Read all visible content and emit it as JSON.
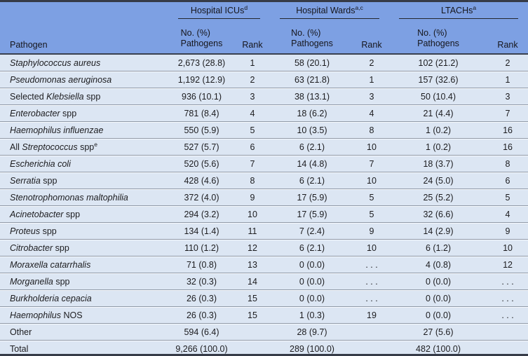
{
  "table": {
    "groups": [
      {
        "label": "Hospital ICUs",
        "sup": "d"
      },
      {
        "label": "Hospital Wards",
        "sup": "a,c"
      },
      {
        "label": "LTACHs",
        "sup": "a"
      }
    ],
    "columns": {
      "pathogen": "Pathogen",
      "no_line1": "No. (%)",
      "no_line2": "Pathogens",
      "rank": "Rank"
    },
    "rows": [
      {
        "pathogen": {
          "pre": "",
          "italic": "Staphylococcus aureus",
          "post": "",
          "sup": ""
        },
        "icu_no": "2,673 (28.8)",
        "icu_rank": "1",
        "ward_no": "58 (20.1)",
        "ward_rank": "2",
        "ltach_no": "102 (21.2)",
        "ltach_rank": "2"
      },
      {
        "pathogen": {
          "pre": "",
          "italic": "Pseudomonas aeruginosa",
          "post": "",
          "sup": ""
        },
        "icu_no": "1,192 (12.9)",
        "icu_rank": "2",
        "ward_no": "63 (21.8)",
        "ward_rank": "1",
        "ltach_no": "157 (32.6)",
        "ltach_rank": "1"
      },
      {
        "pathogen": {
          "pre": "Selected ",
          "italic": "Klebsiella",
          "post": " spp",
          "sup": ""
        },
        "icu_no": "936 (10.1)",
        "icu_rank": "3",
        "ward_no": "38 (13.1)",
        "ward_rank": "3",
        "ltach_no": "50 (10.4)",
        "ltach_rank": "3"
      },
      {
        "pathogen": {
          "pre": "",
          "italic": "Enterobacter",
          "post": " spp",
          "sup": ""
        },
        "icu_no": "781 (8.4)",
        "icu_rank": "4",
        "ward_no": "18 (6.2)",
        "ward_rank": "4",
        "ltach_no": "21 (4.4)",
        "ltach_rank": "7"
      },
      {
        "pathogen": {
          "pre": "",
          "italic": "Haemophilus influenzae",
          "post": "",
          "sup": ""
        },
        "icu_no": "550 (5.9)",
        "icu_rank": "5",
        "ward_no": "10 (3.5)",
        "ward_rank": "8",
        "ltach_no": "1 (0.2)",
        "ltach_rank": "16"
      },
      {
        "pathogen": {
          "pre": "All ",
          "italic": "Streptococcus",
          "post": " spp",
          "sup": "e"
        },
        "icu_no": "527 (5.7)",
        "icu_rank": "6",
        "ward_no": "6 (2.1)",
        "ward_rank": "10",
        "ltach_no": "1 (0.2)",
        "ltach_rank": "16"
      },
      {
        "pathogen": {
          "pre": "",
          "italic": "Escherichia coli",
          "post": "",
          "sup": ""
        },
        "icu_no": "520 (5.6)",
        "icu_rank": "7",
        "ward_no": "14 (4.8)",
        "ward_rank": "7",
        "ltach_no": "18 (3.7)",
        "ltach_rank": "8"
      },
      {
        "pathogen": {
          "pre": "",
          "italic": "Serratia",
          "post": " spp",
          "sup": ""
        },
        "icu_no": "428 (4.6)",
        "icu_rank": "8",
        "ward_no": "6 (2.1)",
        "ward_rank": "10",
        "ltach_no": "24 (5.0)",
        "ltach_rank": "6"
      },
      {
        "pathogen": {
          "pre": "",
          "italic": "Stenotrophomonas maltophilia",
          "post": "",
          "sup": ""
        },
        "icu_no": "372 (4.0)",
        "icu_rank": "9",
        "ward_no": "17 (5.9)",
        "ward_rank": "5",
        "ltach_no": "25 (5.2)",
        "ltach_rank": "5"
      },
      {
        "pathogen": {
          "pre": "",
          "italic": "Acinetobacter",
          "post": " spp",
          "sup": ""
        },
        "icu_no": "294 (3.2)",
        "icu_rank": "10",
        "ward_no": "17 (5.9)",
        "ward_rank": "5",
        "ltach_no": "32 (6.6)",
        "ltach_rank": "4"
      },
      {
        "pathogen": {
          "pre": "",
          "italic": "Proteus",
          "post": " spp",
          "sup": ""
        },
        "icu_no": "134 (1.4)",
        "icu_rank": "11",
        "ward_no": "7 (2.4)",
        "ward_rank": "9",
        "ltach_no": "14 (2.9)",
        "ltach_rank": "9"
      },
      {
        "pathogen": {
          "pre": "",
          "italic": "Citrobacter",
          "post": " spp",
          "sup": ""
        },
        "icu_no": "110 (1.2)",
        "icu_rank": "12",
        "ward_no": "6 (2.1)",
        "ward_rank": "10",
        "ltach_no": "6 (1.2)",
        "ltach_rank": "10"
      },
      {
        "pathogen": {
          "pre": "",
          "italic": "Moraxella catarrhalis",
          "post": "",
          "sup": ""
        },
        "icu_no": "71 (0.8)",
        "icu_rank": "13",
        "ward_no": "0 (0.0)",
        "ward_rank": ". . .",
        "ltach_no": "4 (0.8)",
        "ltach_rank": "12"
      },
      {
        "pathogen": {
          "pre": "",
          "italic": "Morganella",
          "post": " spp",
          "sup": ""
        },
        "icu_no": "32 (0.3)",
        "icu_rank": "14",
        "ward_no": "0 (0.0)",
        "ward_rank": ". . .",
        "ltach_no": "0 (0.0)",
        "ltach_rank": ". . ."
      },
      {
        "pathogen": {
          "pre": "",
          "italic": "Burkholderia cepacia",
          "post": "",
          "sup": ""
        },
        "icu_no": "26 (0.3)",
        "icu_rank": "15",
        "ward_no": "0 (0.0)",
        "ward_rank": ". . .",
        "ltach_no": "0 (0.0)",
        "ltach_rank": ". . ."
      },
      {
        "pathogen": {
          "pre": "",
          "italic": "Haemophilus",
          "post": " NOS",
          "sup": ""
        },
        "icu_no": "26 (0.3)",
        "icu_rank": "15",
        "ward_no": "1 (0.3)",
        "ward_rank": "19",
        "ltach_no": "0 (0.0)",
        "ltach_rank": ". . ."
      },
      {
        "pathogen": {
          "pre": "Other",
          "italic": "",
          "post": "",
          "sup": ""
        },
        "icu_no": "594 (6.4)",
        "icu_rank": "",
        "ward_no": "28 (9.7)",
        "ward_rank": "",
        "ltach_no": "27 (5.6)",
        "ltach_rank": ""
      },
      {
        "pathogen": {
          "pre": "Total",
          "italic": "",
          "post": "",
          "sup": ""
        },
        "icu_no": "9,266 (100.0)",
        "icu_rank": "",
        "ward_no": "289 (100.0)",
        "ward_rank": "",
        "ltach_no": "482 (100.0)",
        "ltach_rank": ""
      }
    ]
  },
  "colors": {
    "header_bg": "#7da0e3",
    "row_bg": "#dce6f3",
    "rule_dark": "#363b47",
    "rule_gray": "#9099a7",
    "text": "#1c1c1f"
  }
}
